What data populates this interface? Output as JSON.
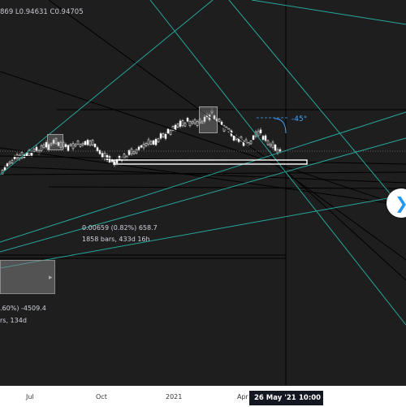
{
  "legend": {
    "ohlc_text": "869  L0.94631  C0.94705"
  },
  "tools": {
    "angle_label": "-45°",
    "measure_top_line1": "0.00659 (0.82%) 658.7",
    "measure_top_line2": "1858 bars, 433d 16h",
    "measure_bottom_line1": ".60%) -4509.4",
    "measure_bottom_line2": "rs, 134d"
  },
  "time_axis": {
    "ticks": [
      "Jul",
      "Oct",
      "2021",
      "Apr"
    ],
    "crosshair_date": "26 May '21",
    "crosshair_time": "10:00"
  },
  "colors": {
    "background": "#1e1e1f",
    "teal_lines": "#26a69a",
    "black_lines": "#000000",
    "angle_blue": "#3ea5ff"
  },
  "icons": {
    "scroll_button": "chevron-right-icon"
  }
}
